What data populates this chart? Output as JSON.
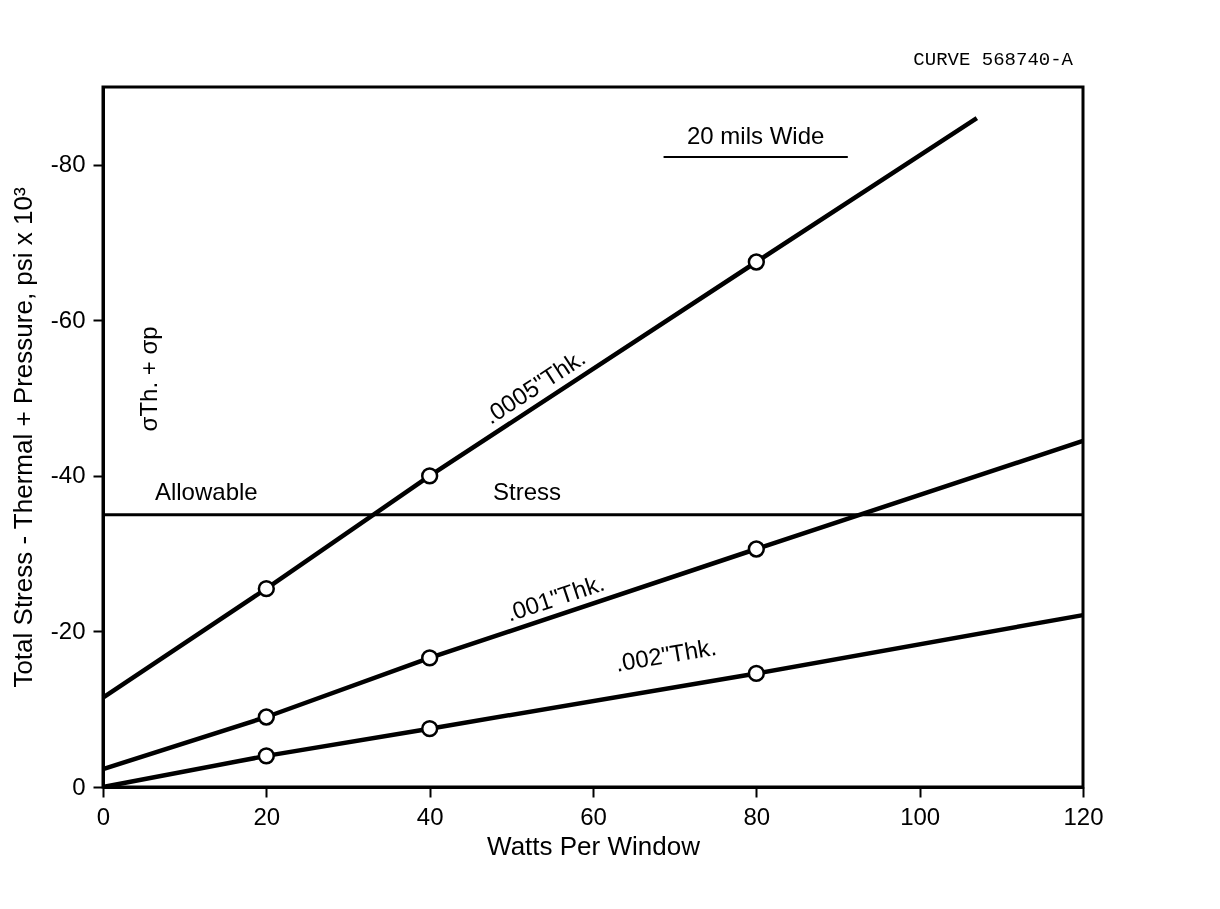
{
  "chart_data": {
    "type": "line",
    "xlabel": "Watts Per Window",
    "ylabel": "Total Stress - Thermal + Pressure, psi x 10³",
    "annotations": [
      "CURVE 568740-A",
      "20 mils Wide",
      "σTh. + σp"
    ],
    "xlim": [
      0,
      120
    ],
    "ylim": [
      0,
      -90
    ],
    "xticks": [
      0,
      20,
      40,
      60,
      80,
      100,
      120
    ],
    "yticks": [
      0,
      -20,
      -40,
      -60,
      -80
    ],
    "grid": false,
    "ref_lines": [
      {
        "axis": "y",
        "value": -35,
        "label": "Allowable Stress",
        "color": "#000000",
        "line_style": "solid"
      }
    ],
    "series": [
      {
        "name": ".0005\"Thk.",
        "color": "#000000",
        "marker": "none",
        "line_style": "solid",
        "x": [
          0,
          20,
          40,
          80,
          107
        ],
        "values": [
          -11.5,
          -25.5,
          -40,
          -67.5,
          -86
        ]
      },
      {
        "name": ".001\"Thk.",
        "color": "#000000",
        "marker": "none",
        "line_style": "solid",
        "x": [
          0,
          20,
          40,
          80,
          120
        ],
        "values": [
          -2.3,
          -9,
          -16.6,
          -30.6,
          -44.5
        ]
      },
      {
        "name": ".002\"Thk.",
        "color": "#000000",
        "marker": "none",
        "line_style": "solid",
        "x": [
          0,
          20,
          40,
          80,
          120
        ],
        "values": [
          0,
          -4,
          -7.5,
          -14.6,
          -22.1
        ]
      },
      {
        "type": "scatter",
        "color": "#000000",
        "marker": "circle",
        "x": [
          20,
          40,
          80
        ],
        "values": [
          -25.5,
          -40,
          -67.5
        ]
      },
      {
        "type": "scatter",
        "color": "#000000",
        "marker": "circle",
        "x": [
          20,
          40,
          80
        ],
        "values": [
          -9,
          -16.6,
          -30.6
        ]
      },
      {
        "type": "scatter",
        "color": "#000000",
        "marker": "circle",
        "x": [
          20,
          40,
          80
        ],
        "values": [
          -4,
          -7.5,
          -14.6
        ]
      }
    ]
  }
}
